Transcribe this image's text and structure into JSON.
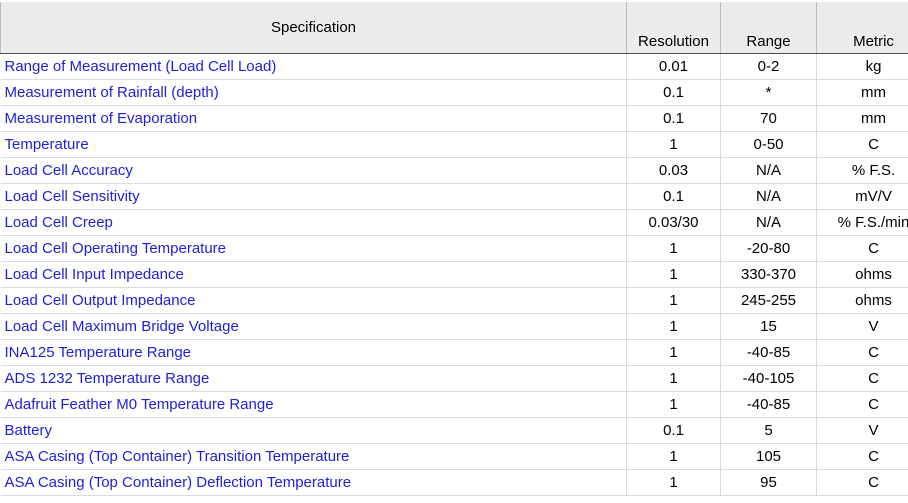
{
  "headers": {
    "specification": "Specification",
    "resolution": "Resolution",
    "range": "Range",
    "metric": "Metric"
  },
  "rows": [
    {
      "spec": "Range of Measurement (Load Cell Load)",
      "resolution": "0.01",
      "range": "0-2",
      "metric": "kg"
    },
    {
      "spec": "Measurement of Rainfall (depth)",
      "resolution": "0.1",
      "range": "*",
      "metric": "mm"
    },
    {
      "spec": "Measurement of Evaporation",
      "resolution": "0.1",
      "range": "70",
      "metric": "mm"
    },
    {
      "spec": "Temperature",
      "resolution": "1",
      "range": "0-50",
      "metric": "C"
    },
    {
      "spec": "Load Cell Accuracy",
      "resolution": "0.03",
      "range": "N/A",
      "metric": "% F.S."
    },
    {
      "spec": "Load Cell Sensitivity",
      "resolution": "0.1",
      "range": "N/A",
      "metric": "mV/V"
    },
    {
      "spec": "Load Cell Creep",
      "resolution": "0.03/30",
      "range": "N/A",
      "metric": "% F.S./min"
    },
    {
      "spec": "Load Cell Operating Temperature",
      "resolution": "1",
      "range": "-20-80",
      "metric": "C"
    },
    {
      "spec": "Load Cell Input Impedance",
      "resolution": "1",
      "range": "330-370",
      "metric": "ohms"
    },
    {
      "spec": "Load Cell Output Impedance",
      "resolution": "1",
      "range": "245-255",
      "metric": "ohms"
    },
    {
      "spec": "Load Cell Maximum Bridge Voltage",
      "resolution": "1",
      "range": "15",
      "metric": "V"
    },
    {
      "spec": "INA125 Temperature Range",
      "resolution": "1",
      "range": "-40-85",
      "metric": "C"
    },
    {
      "spec": "ADS 1232 Temperature Range",
      "resolution": "1",
      "range": "-40-105",
      "metric": "C"
    },
    {
      "spec": "Adafruit Feather M0 Temperature Range",
      "resolution": "1",
      "range": "-40-85",
      "metric": "C"
    },
    {
      "spec": "Battery",
      "resolution": "0.1",
      "range": "5",
      "metric": "V"
    },
    {
      "spec": "ASA Casing (Top Container) Transition Temperature",
      "resolution": "1",
      "range": "105",
      "metric": "C"
    },
    {
      "spec": "ASA Casing (Top Container) Deflection Temperature",
      "resolution": "1",
      "range": "95",
      "metric": "C"
    }
  ]
}
